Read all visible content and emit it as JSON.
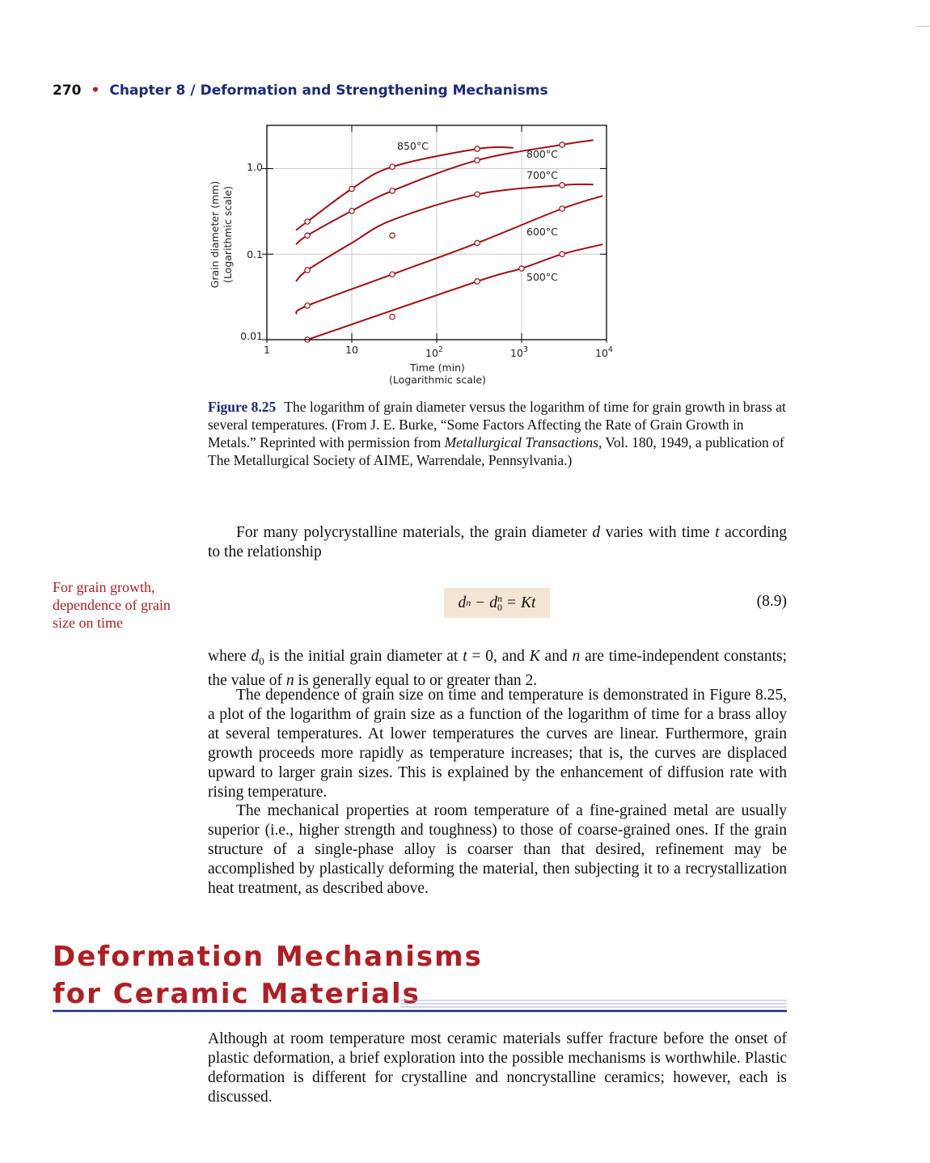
{
  "running_head": {
    "page_number": "270",
    "bullet": "•",
    "chapter": "Chapter 8",
    "slash": "/",
    "title": "Deformation and Strengthening Mechanisms"
  },
  "figure": {
    "ylabel_line1": "Grain diameter (mm)",
    "ylabel_line2": "(Logarithmic scale)",
    "xlabel_line1": "Time (min)",
    "xlabel_line2": "(Logarithmic scale)",
    "y_ticks": [
      "1.0",
      "0.1",
      "0.01"
    ],
    "x_ticks": [
      {
        "base": "1",
        "exp": ""
      },
      {
        "base": "10",
        "exp": ""
      },
      {
        "base": "10",
        "exp": "2"
      },
      {
        "base": "10",
        "exp": "3"
      },
      {
        "base": "10",
        "exp": "4"
      }
    ],
    "curve_labels": [
      "850°C",
      "800°C",
      "700°C",
      "600°C",
      "500°C"
    ],
    "caption_label": "Figure 8.25",
    "caption_text_1": "The logarithm of grain diameter versus the logarithm of time for grain growth in brass at several temperatures. (From J. E. Burke, “Some Factors Affecting the Rate of Grain Growth in Metals.” Reprinted with permission from ",
    "caption_italic": "Metallurgical Transactions,",
    "caption_text_2": " Vol. 180, 1949, a publication of The Metallurgical Society of AIME, Warrendale, Pennsylvania.)"
  },
  "chart_data": {
    "type": "line",
    "xlabel": "Time (min)",
    "ylabel": "Grain diameter (mm)",
    "xscale": "log",
    "yscale": "log",
    "xlim": [
      1,
      10000
    ],
    "ylim": [
      0.01,
      3.2
    ],
    "grid": true,
    "series": [
      {
        "name": "850°C",
        "x": [
          2.2,
          3,
          10,
          30,
          300,
          800
        ],
        "y": [
          0.19,
          0.24,
          0.58,
          1.05,
          1.7,
          1.75
        ]
      },
      {
        "name": "800°C",
        "x": [
          2.2,
          3,
          10,
          30,
          300,
          3000,
          7000
        ],
        "y": [
          0.13,
          0.165,
          0.32,
          0.55,
          1.25,
          1.9,
          2.15
        ]
      },
      {
        "name": "700°C",
        "x": [
          2.2,
          3,
          10,
          30,
          300,
          3000,
          7000
        ],
        "y": [
          0.048,
          0.065,
          0.135,
          0.25,
          0.5,
          0.64,
          0.65
        ]
      },
      {
        "name": "600°C",
        "x": [
          2.2,
          3,
          30,
          300,
          3000,
          9000
        ],
        "y": [
          0.02,
          0.025,
          0.058,
          0.135,
          0.34,
          0.48
        ]
      },
      {
        "name": "500°C",
        "x": [
          3,
          300,
          1000,
          3000,
          9000
        ],
        "y": [
          0.01,
          0.048,
          0.068,
          0.1,
          0.13
        ]
      }
    ],
    "outliers": [
      {
        "x": 30,
        "y": 0.165
      },
      {
        "x": 30,
        "y": 0.0185
      }
    ],
    "markers": [
      {
        "series": "850°C",
        "x": [
          3,
          10,
          30,
          300
        ],
        "y": [
          0.24,
          0.58,
          1.05,
          1.7
        ]
      },
      {
        "series": "800°C",
        "x": [
          3,
          10,
          30,
          300,
          3000
        ],
        "y": [
          0.165,
          0.32,
          0.55,
          1.25,
          1.9
        ]
      },
      {
        "series": "700°C",
        "x": [
          3,
          300,
          3000
        ],
        "y": [
          0.065,
          0.5,
          0.64
        ]
      },
      {
        "series": "600°C",
        "x": [
          3,
          30,
          300,
          3000
        ],
        "y": [
          0.025,
          0.058,
          0.135,
          0.34
        ]
      },
      {
        "series": "500°C",
        "x": [
          3,
          300,
          1000,
          3000
        ],
        "y": [
          0.01,
          0.048,
          0.068,
          0.1
        ]
      }
    ],
    "colors": {
      "curve": "#a00f14",
      "marker_fill": "#ffffff",
      "grid": "#c8c8c8",
      "axis": "#000000"
    }
  },
  "body": {
    "p1_text_1": "For many polycrystalline materials, the grain diameter ",
    "p1_var_d": "d",
    "p1_text_2": " varies with time ",
    "p1_var_t": "t",
    "p1_text_3": " according to the relationship",
    "margin_note": "For grain growth, dependence of grain size on time",
    "equation": {
      "d": "d",
      "n": "n",
      "minus": "−",
      "d0": "d",
      "sub0": "0",
      "n2": "n",
      "eq": "=",
      "kt": "Kt"
    },
    "equation_number": "(8.9)",
    "p2_text_1": "where ",
    "p2_d0": "d",
    "p2_sub0": "0",
    "p2_text_2": " is the initial grain diameter at ",
    "p2_t": "t",
    "p2_text_3": " = 0, and ",
    "p2_K": "K",
    "p2_text_4": " and ",
    "p2_n": "n",
    "p2_text_5": " are time-independent constants; the value of ",
    "p2_n2": "n",
    "p2_text_6": " is generally equal to or greater than 2.",
    "p3": "The dependence of grain size on time and temperature is demonstrated in Figure 8.25, a plot of the logarithm of grain size as a function of the logarithm of time for a brass alloy at several temperatures. At lower temperatures the curves are linear. Furthermore, grain growth proceeds more rapidly as temperature increases; that is, the curves are displaced upward to larger grain sizes. This is explained by the enhancement of diffusion rate with rising temperature.",
    "p4": "The mechanical properties at room temperature of a fine-grained metal are usually superior (i.e., higher strength and toughness) to those of coarse-grained ones. If the grain structure of a single-phase alloy is coarser than that desired, refinement may be accomplished by plastically deforming the material, then subjecting it to a recrystallization heat treatment, as described above.",
    "section_title_line1": "Deformation Mechanisms",
    "section_title_line2": "for Ceramic Materials",
    "p5": "Although at room temperature most ceramic materials suffer fracture before the onset of plastic deformation, a brief exploration into the possible mechanisms is worthwhile. Plastic deformation is different for crystalline and noncrystalline ceramics; however, each is discussed."
  }
}
